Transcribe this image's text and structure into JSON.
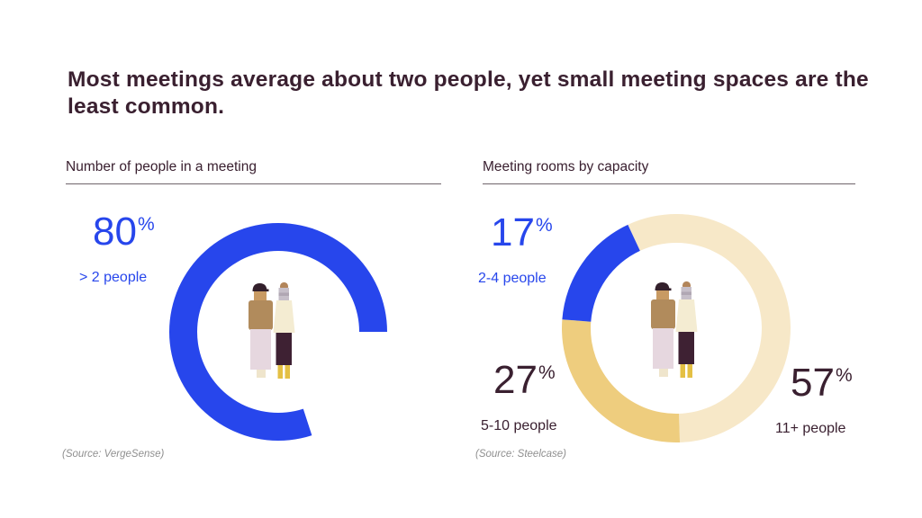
{
  "title": {
    "text": "Most meetings average about two people, yet small meeting spaces are the least common.",
    "lines": [
      "Most meetings average about two people, yet small meeting spaces are the",
      "least common."
    ]
  },
  "colors": {
    "accent_blue": "#2746ec",
    "tan": "#eecd7e",
    "cream": "#f7e8c8",
    "dark_plum_text": "#3a2030",
    "divider": "#6f646b",
    "source_grey": "#8f8f8f",
    "background": "#ffffff"
  },
  "chart_data": [
    {
      "type": "pie",
      "subtype": "donut",
      "title": "Number of people in a meeting",
      "categories": [
        "> 2 people",
        "unfilled remainder"
      ],
      "values": [
        80,
        20
      ],
      "segment_colors": [
        "#2746ec",
        null
      ],
      "annotations": [
        "80% > 2 people"
      ],
      "center_icon": "two-people-illustration",
      "legend_position": "none",
      "source": "(Source: VergeSense)"
    },
    {
      "type": "pie",
      "subtype": "donut",
      "title": "Meeting rooms by capacity",
      "categories": [
        "11+ people",
        "5-10 people",
        "2-4 people"
      ],
      "values": [
        57,
        27,
        17
      ],
      "segment_colors": [
        "#f7e8c8",
        "#eecd7e",
        "#2746ec"
      ],
      "annotations": [
        "17% 2-4 people",
        "27% 5-10 people",
        "57% 11+ people"
      ],
      "center_icon": "two-people-illustration",
      "legend_position": "none",
      "source": "(Source: Steelcase)"
    }
  ],
  "charts": [
    {
      "header": "Number of people in a meeting",
      "source": "(Source: VergeSense)",
      "stats": [
        {
          "value": "80",
          "suffix": "%",
          "label": "> 2 people"
        }
      ],
      "donut": {
        "start_angle": 162,
        "segments": [
          {
            "name": "gt-2-people",
            "percent": 80,
            "color": "#2746ec"
          },
          {
            "name": "gap",
            "percent": 20,
            "color": null
          }
        ]
      }
    },
    {
      "header": "Meeting rooms by capacity",
      "source": "(Source: Steelcase)",
      "stats": [
        {
          "value": "17",
          "suffix": "%",
          "label": "2-4 people"
        },
        {
          "value": "27",
          "suffix": "%",
          "label": "5-10 people"
        },
        {
          "value": "57",
          "suffix": "%",
          "label": "11+ people"
        }
      ],
      "donut": {
        "start_angle": 335,
        "segments": [
          {
            "name": "11-plus-people",
            "percent": 57,
            "color": "#f7e8c8"
          },
          {
            "name": "5-10-people",
            "percent": 27,
            "color": "#eecd7e"
          },
          {
            "name": "2-4-people",
            "percent": 17,
            "color": "#2746ec"
          }
        ]
      }
    }
  ]
}
